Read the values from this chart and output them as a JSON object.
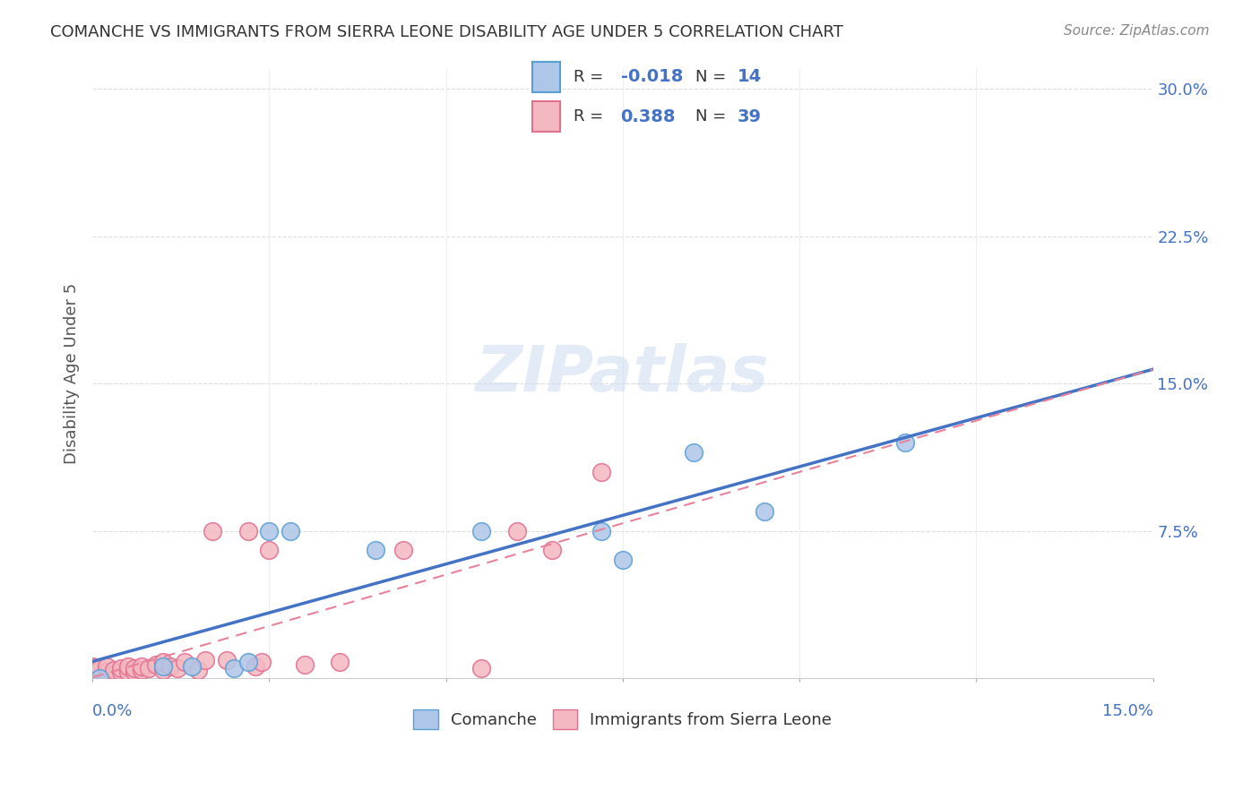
{
  "title": "COMANCHE VS IMMIGRANTS FROM SIERRA LEONE DISABILITY AGE UNDER 5 CORRELATION CHART",
  "source": "Source: ZipAtlas.com",
  "ylabel": "Disability Age Under 5",
  "yticks": [
    0.0,
    0.075,
    0.15,
    0.225,
    0.3
  ],
  "ytick_labels": [
    "",
    "7.5%",
    "15.0%",
    "22.5%",
    "30.0%"
  ],
  "xlim": [
    0.0,
    0.15
  ],
  "ylim": [
    0.0,
    0.31
  ],
  "watermark": "ZIPatlas",
  "comanche_color": "#aec6e8",
  "sierra_leone_color": "#f4b8c1",
  "comanche_edge": "#5a9fd4",
  "sierra_leone_edge": "#e07090",
  "trendline_comanche_color": "#4472c4",
  "trendline_sierra_color": "#e8829a",
  "comanche_x": [
    0.001,
    0.01,
    0.014,
    0.02,
    0.022,
    0.025,
    0.028,
    0.04,
    0.055,
    0.072,
    0.075,
    0.085,
    0.095,
    0.115
  ],
  "comanche_y": [
    0.0,
    0.006,
    0.006,
    0.005,
    0.008,
    0.075,
    0.075,
    0.065,
    0.075,
    0.075,
    0.06,
    0.115,
    0.085,
    0.12
  ],
  "sierra_leone_x": [
    0.0,
    0.0,
    0.001,
    0.001,
    0.001,
    0.002,
    0.002,
    0.003,
    0.003,
    0.004,
    0.004,
    0.005,
    0.005,
    0.006,
    0.006,
    0.007,
    0.007,
    0.008,
    0.009,
    0.01,
    0.01,
    0.011,
    0.012,
    0.013,
    0.015,
    0.016,
    0.017,
    0.019,
    0.022,
    0.023,
    0.024,
    0.025,
    0.03,
    0.035,
    0.044,
    0.055,
    0.06,
    0.065,
    0.072
  ],
  "sierra_leone_y": [
    0.005,
    0.006,
    0.002,
    0.004,
    0.005,
    0.003,
    0.006,
    0.002,
    0.004,
    0.003,
    0.005,
    0.003,
    0.006,
    0.003,
    0.005,
    0.004,
    0.006,
    0.005,
    0.007,
    0.004,
    0.008,
    0.006,
    0.005,
    0.008,
    0.004,
    0.009,
    0.075,
    0.009,
    0.075,
    0.006,
    0.008,
    0.065,
    0.007,
    0.008,
    0.065,
    0.005,
    0.075,
    0.065,
    0.105
  ]
}
